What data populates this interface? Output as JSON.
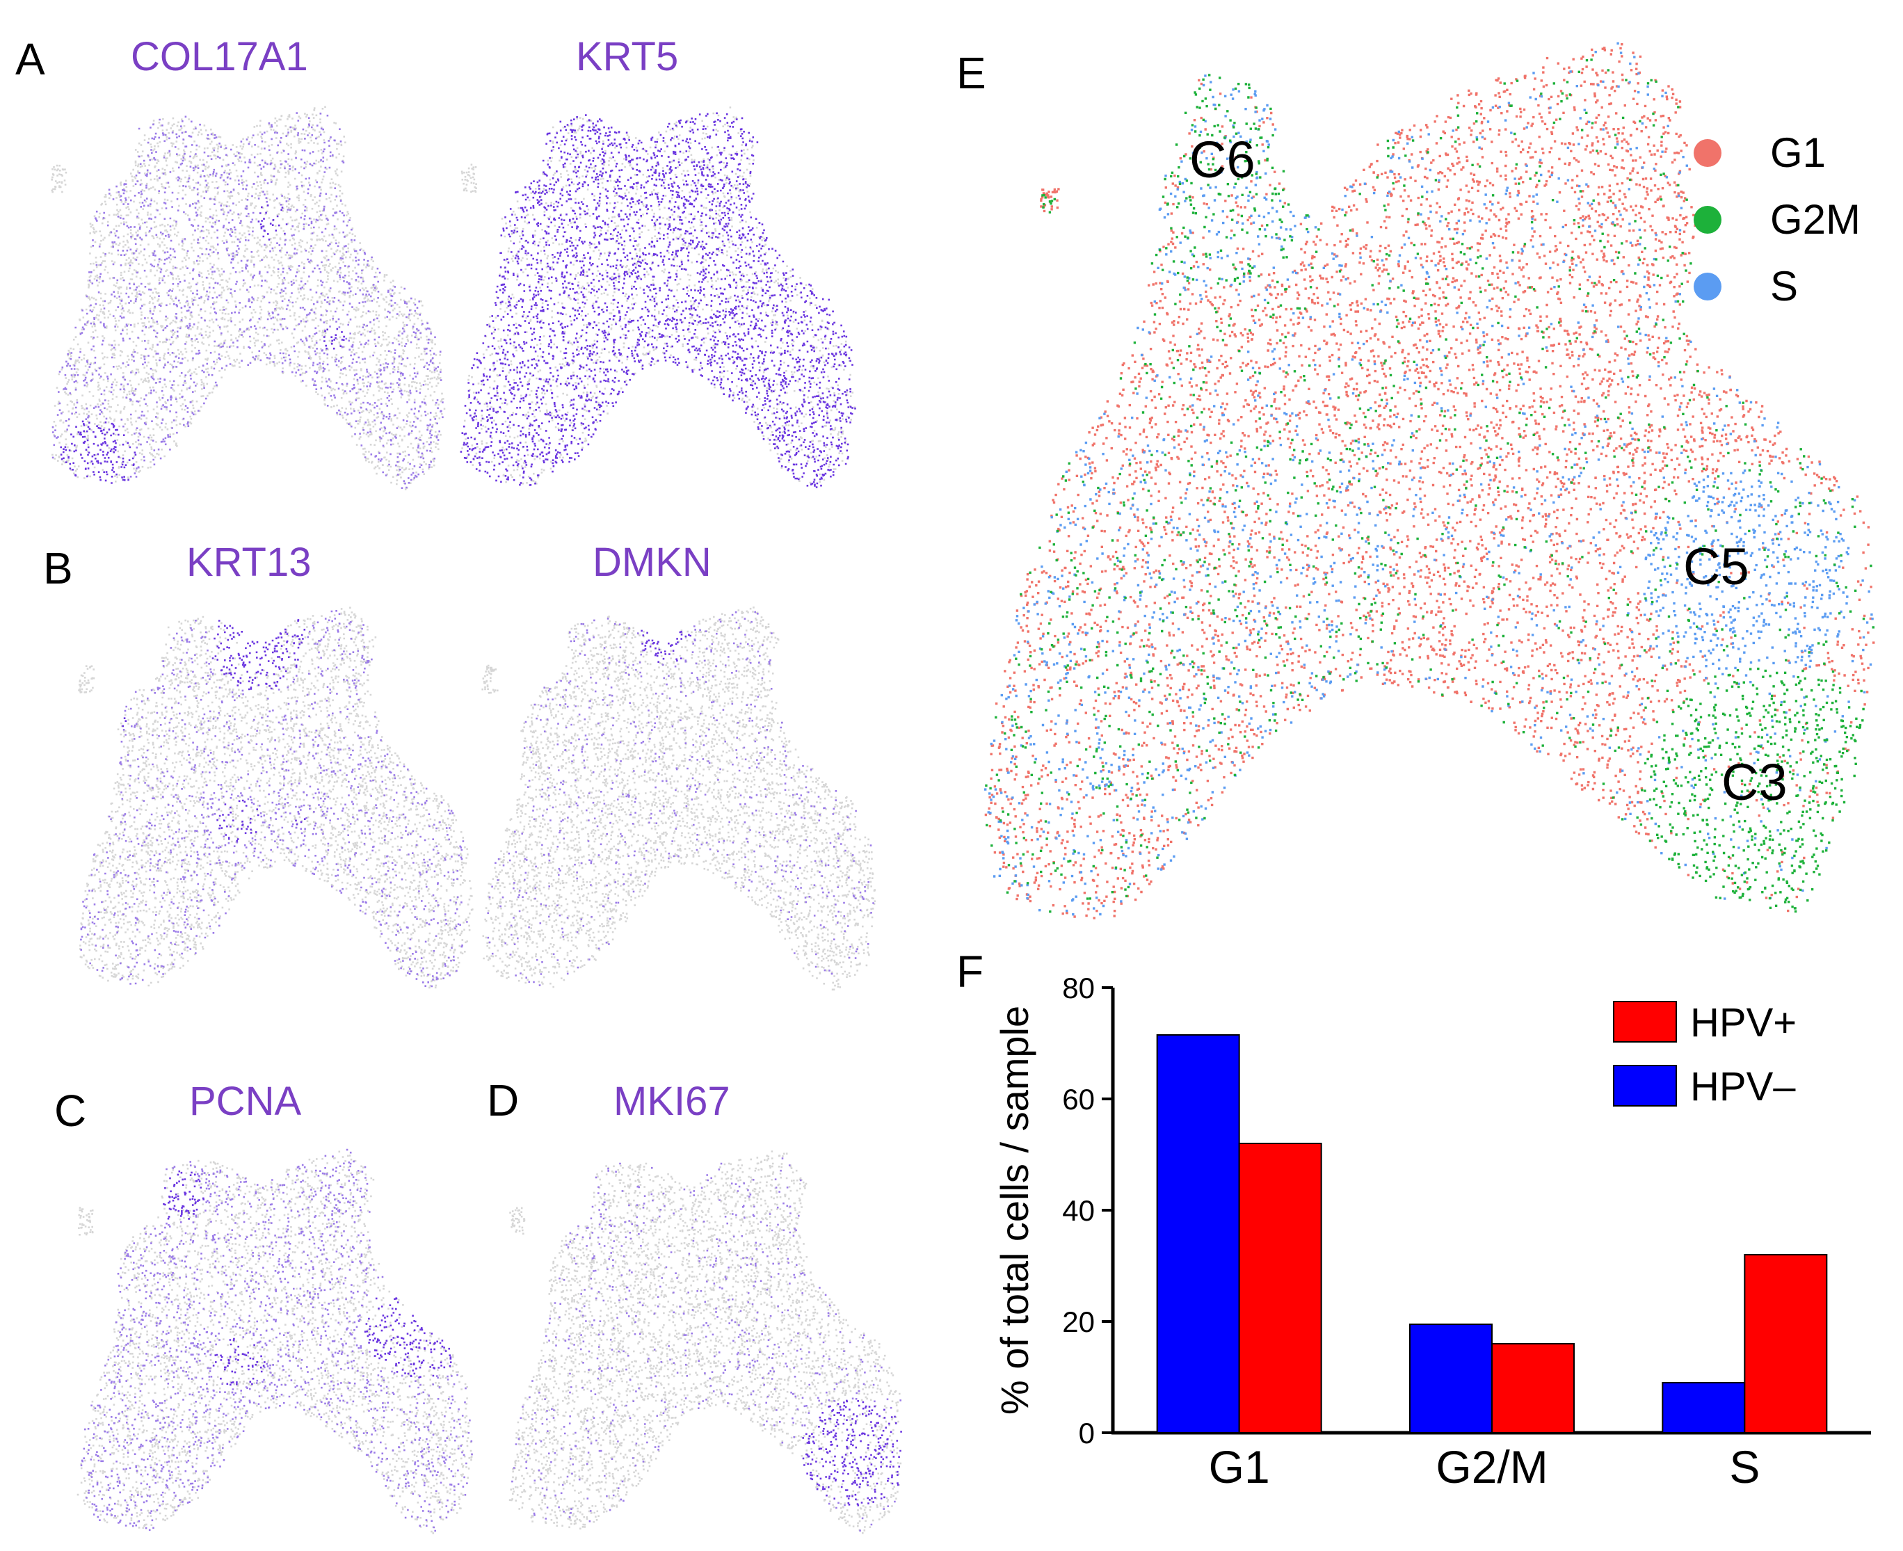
{
  "panels": {
    "A": {
      "letter": "A",
      "genes": [
        "COL17A1",
        "KRT5"
      ]
    },
    "B": {
      "letter": "B",
      "genes": [
        "KRT13",
        "DMKN"
      ]
    },
    "C": {
      "letter": "C",
      "genes": [
        "PCNA"
      ]
    },
    "D": {
      "letter": "D",
      "genes": [
        "MKI67"
      ]
    },
    "E": {
      "letter": "E",
      "clusters": [
        "C6",
        "C5",
        "C3"
      ],
      "legend": [
        {
          "label": "G1",
          "color": "#f0736a"
        },
        {
          "label": "G2M",
          "color": "#1db13a"
        },
        {
          "label": "S",
          "color": "#5b9cf2"
        }
      ]
    },
    "F": {
      "letter": "F"
    }
  },
  "colors": {
    "gray": "#d6d6d6",
    "purple": "#7a3fe0",
    "red": "#ff0000",
    "blue": "#0000ff"
  },
  "chart_data": {
    "type": "bar",
    "title": "",
    "ylabel": "% of total cells / sample",
    "xlabel": "",
    "ylim": [
      0,
      80
    ],
    "yticks": [
      0,
      20,
      40,
      60,
      80
    ],
    "categories": [
      "G1",
      "G2/M",
      "S"
    ],
    "series": [
      {
        "name": "HPV–",
        "color": "#0000ff",
        "values": [
          71.5,
          19.5,
          9
        ]
      },
      {
        "name": "HPV+",
        "color": "#ff0000",
        "values": [
          52,
          16,
          32
        ]
      }
    ],
    "legend": {
      "placement": "top-right",
      "order": [
        "HPV+",
        "HPV–"
      ]
    }
  }
}
